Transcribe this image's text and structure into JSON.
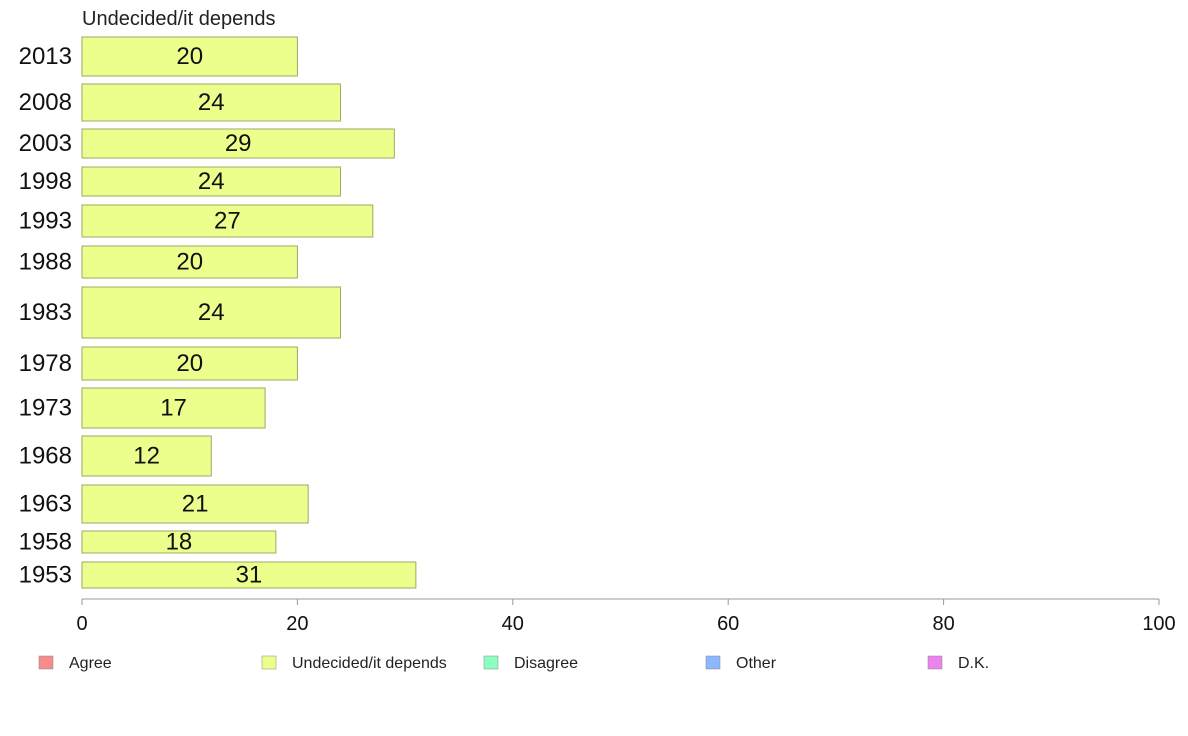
{
  "chart_data": {
    "type": "bar",
    "orientation": "horizontal",
    "panel_title": "Undecided/it depends",
    "categories": [
      "2013",
      "2008",
      "2003",
      "1998",
      "1993",
      "1988",
      "1983",
      "1978",
      "1973",
      "1968",
      "1963",
      "1958",
      "1953"
    ],
    "series": [
      {
        "name": "Undecided/it depends",
        "color": "#ecff8c",
        "values": [
          20,
          24,
          29,
          24,
          27,
          20,
          24,
          20,
          17,
          12,
          21,
          18,
          31
        ]
      }
    ],
    "bar_labels": [
      "20",
      "24",
      "29",
      "24",
      "27",
      "20",
      "24",
      "20",
      "17",
      "12",
      "21",
      "18",
      "31"
    ],
    "xlim": [
      0,
      100
    ],
    "xticks": [
      0,
      20,
      40,
      60,
      80,
      100
    ],
    "grid": false,
    "legend": {
      "position": "bottom",
      "items": [
        {
          "label": "Agree",
          "color": "#f88c8c"
        },
        {
          "label": "Undecided/it depends",
          "color": "#ecff8c"
        },
        {
          "label": "Disagree",
          "color": "#8cffc0"
        },
        {
          "label": "Other",
          "color": "#8cb8ff"
        },
        {
          "label": "D.K.",
          "color": "#ee82ee"
        }
      ]
    }
  }
}
